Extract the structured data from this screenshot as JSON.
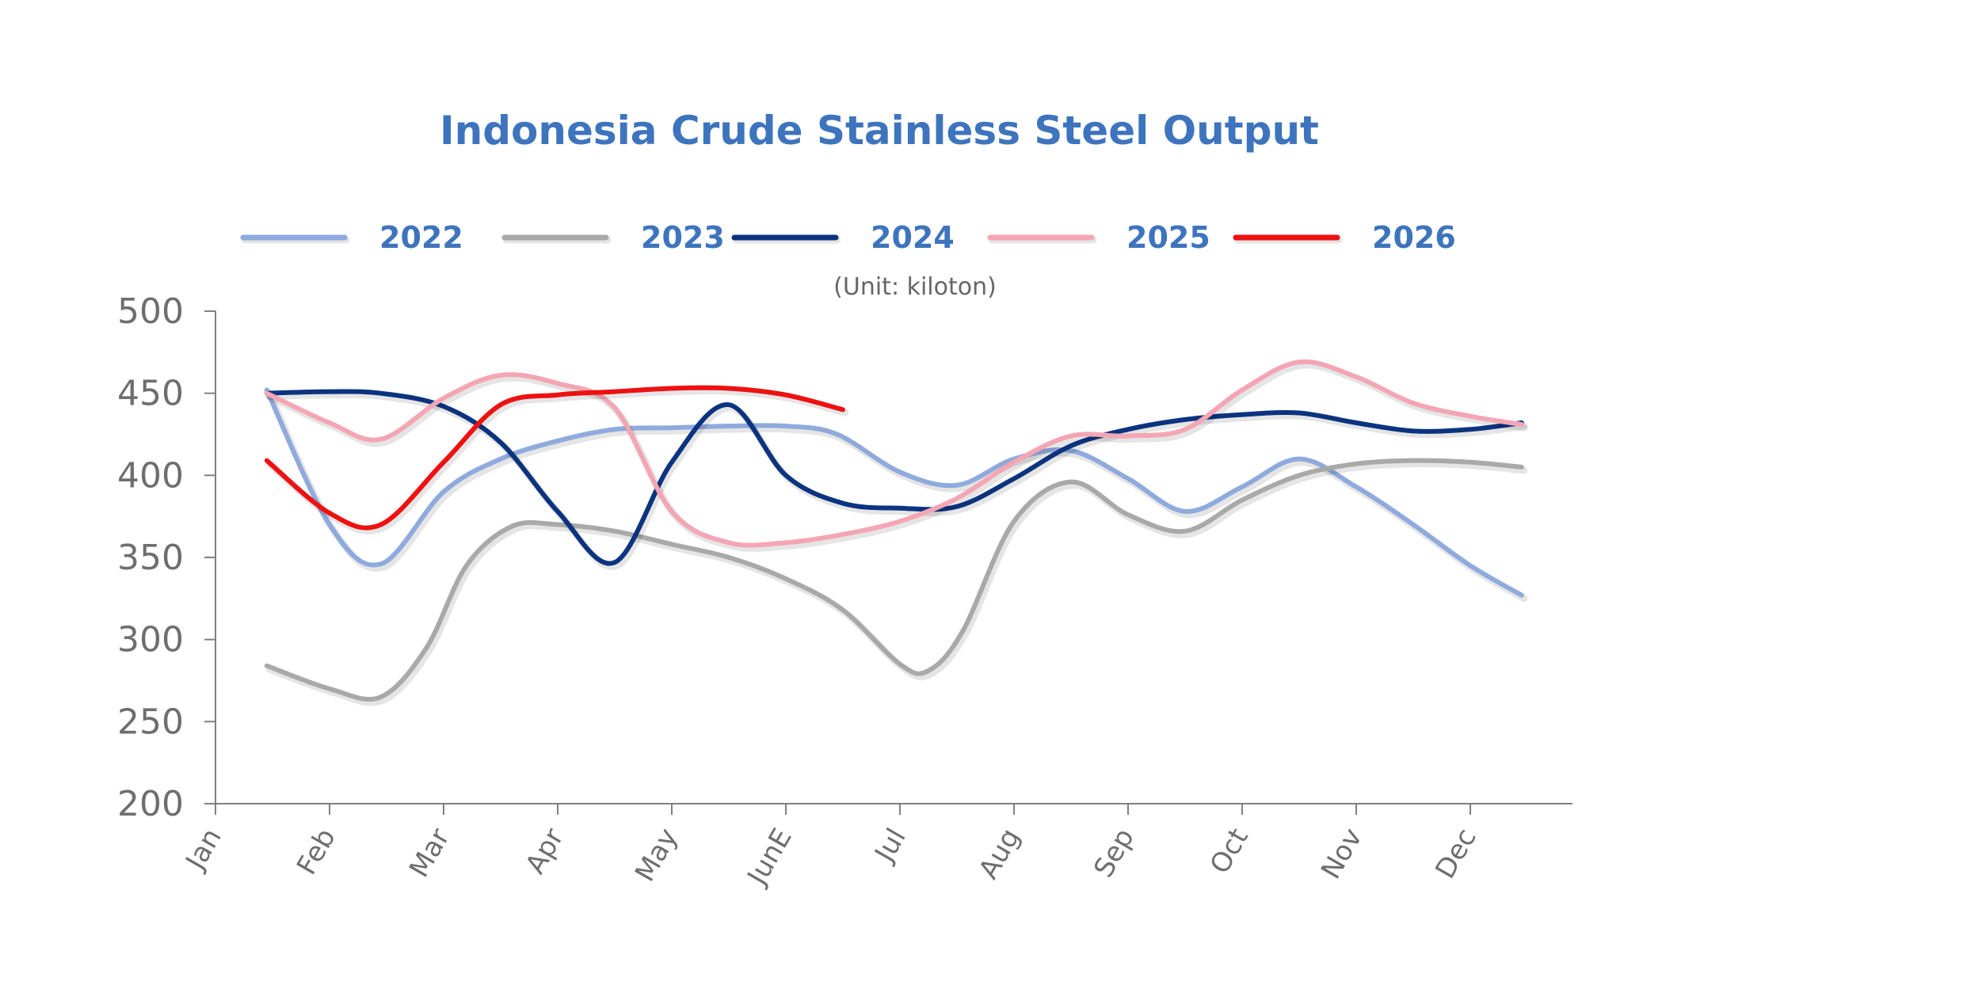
{
  "chart_data": {
    "type": "line",
    "title": "Indonesia Crude Stainless Steel Output",
    "unit_note": "(Unit: kiloton)",
    "categories": [
      "Jan",
      "Feb",
      "Mar",
      "Apr",
      "May",
      "JunE",
      "Jul",
      "Aug",
      "Sep",
      "Oct",
      "Nov",
      "Dec"
    ],
    "ylim": [
      200,
      500
    ],
    "yticks": [
      200,
      250,
      300,
      350,
      400,
      450,
      500
    ],
    "legend_position": "top",
    "grid": false,
    "series": [
      {
        "name": "2022",
        "color": "#8faadc",
        "points": [
          [
            0.45,
            452
          ],
          [
            1.0,
            370
          ],
          [
            1.45,
            346
          ],
          [
            2.0,
            390
          ],
          [
            2.5,
            410
          ],
          [
            3.0,
            421
          ],
          [
            3.5,
            428
          ],
          [
            4.0,
            429
          ],
          [
            4.5,
            430
          ],
          [
            5.0,
            430
          ],
          [
            5.45,
            425
          ],
          [
            6.0,
            402
          ],
          [
            6.5,
            394
          ],
          [
            7.0,
            410
          ],
          [
            7.5,
            415
          ],
          [
            8.0,
            398
          ],
          [
            8.5,
            378
          ],
          [
            9.0,
            393
          ],
          [
            9.5,
            410
          ],
          [
            10.0,
            393
          ],
          [
            10.5,
            370
          ],
          [
            11.0,
            345
          ],
          [
            11.45,
            327
          ]
        ]
      },
      {
        "name": "2023",
        "color": "#a9a9a9",
        "points": [
          [
            0.45,
            284
          ],
          [
            1.0,
            270
          ],
          [
            1.45,
            265
          ],
          [
            1.85,
            295
          ],
          [
            2.2,
            345
          ],
          [
            2.6,
            369
          ],
          [
            3.0,
            370
          ],
          [
            3.5,
            366
          ],
          [
            4.0,
            358
          ],
          [
            4.5,
            350
          ],
          [
            5.0,
            337
          ],
          [
            5.5,
            318
          ],
          [
            6.0,
            285
          ],
          [
            6.25,
            281
          ],
          [
            6.55,
            305
          ],
          [
            7.0,
            372
          ],
          [
            7.5,
            396
          ],
          [
            8.0,
            376
          ],
          [
            8.5,
            366
          ],
          [
            9.0,
            385
          ],
          [
            9.5,
            400
          ],
          [
            10.0,
            407
          ],
          [
            10.5,
            409
          ],
          [
            11.0,
            408
          ],
          [
            11.45,
            405
          ]
        ]
      },
      {
        "name": "2024",
        "color": "#0b3380",
        "points": [
          [
            0.45,
            450
          ],
          [
            1.0,
            451
          ],
          [
            1.45,
            450
          ],
          [
            2.0,
            442
          ],
          [
            2.5,
            420
          ],
          [
            3.0,
            378
          ],
          [
            3.5,
            347
          ],
          [
            4.0,
            408
          ],
          [
            4.5,
            443
          ],
          [
            5.0,
            400
          ],
          [
            5.5,
            383
          ],
          [
            6.0,
            380
          ],
          [
            6.5,
            381
          ],
          [
            7.0,
            398
          ],
          [
            7.5,
            418
          ],
          [
            8.0,
            428
          ],
          [
            8.5,
            434
          ],
          [
            9.0,
            437
          ],
          [
            9.5,
            438
          ],
          [
            10.0,
            432
          ],
          [
            10.5,
            427
          ],
          [
            11.0,
            428
          ],
          [
            11.45,
            432
          ]
        ]
      },
      {
        "name": "2025",
        "color": "#f4a6b4",
        "points": [
          [
            0.45,
            450
          ],
          [
            1.0,
            432
          ],
          [
            1.45,
            422
          ],
          [
            2.0,
            447
          ],
          [
            2.5,
            461
          ],
          [
            3.0,
            456
          ],
          [
            3.5,
            441
          ],
          [
            4.0,
            378
          ],
          [
            4.5,
            359
          ],
          [
            5.0,
            359
          ],
          [
            5.5,
            364
          ],
          [
            6.0,
            372
          ],
          [
            6.5,
            386
          ],
          [
            7.0,
            408
          ],
          [
            7.5,
            424
          ],
          [
            8.0,
            424
          ],
          [
            8.5,
            428
          ],
          [
            9.0,
            452
          ],
          [
            9.5,
            469
          ],
          [
            10.0,
            460
          ],
          [
            10.5,
            444
          ],
          [
            11.0,
            436
          ],
          [
            11.45,
            431
          ]
        ]
      },
      {
        "name": "2026",
        "color": "#ee1111",
        "points": [
          [
            0.45,
            409
          ],
          [
            1.0,
            377
          ],
          [
            1.45,
            370
          ],
          [
            2.0,
            408
          ],
          [
            2.5,
            443
          ],
          [
            3.0,
            449
          ],
          [
            3.5,
            451
          ],
          [
            4.0,
            453
          ],
          [
            4.5,
            453
          ],
          [
            5.0,
            449
          ],
          [
            5.5,
            440
          ]
        ]
      }
    ]
  }
}
